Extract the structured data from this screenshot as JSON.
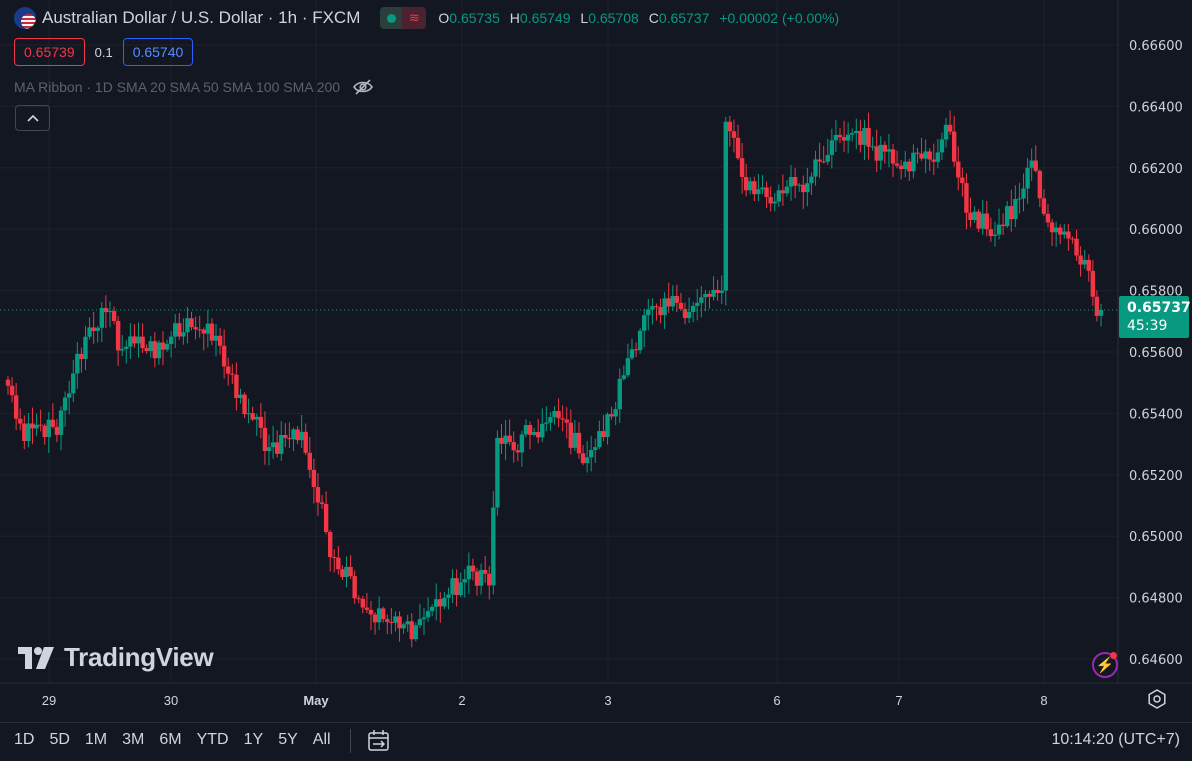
{
  "header": {
    "title": "Australian Dollar / U.S. Dollar · 1h · FXCM",
    "ohlc": {
      "o_label": "O",
      "o": "0.65735",
      "h_label": "H",
      "h": "0.65749",
      "l_label": "L",
      "l": "0.65708",
      "c_label": "C",
      "c": "0.65737",
      "change": "+0.00002 (+0.00%)"
    }
  },
  "trade": {
    "bid": "0.65739",
    "spread": "0.1",
    "ask": "0.65740"
  },
  "indicator": {
    "label": "MA Ribbon · 1D SMA 20 SMA 50 SMA 100 SMA 200"
  },
  "price_tag": {
    "price": "0.65737",
    "countdown": "45:39"
  },
  "logo": {
    "text": "TradingView"
  },
  "bottom_bar": {
    "ranges": [
      "1D",
      "5D",
      "1M",
      "3M",
      "6M",
      "YTD",
      "1Y",
      "5Y",
      "All"
    ],
    "clock": "10:14:20 (UTC+7)"
  },
  "colors": {
    "background": "#131722",
    "up": "#089981",
    "down": "#f23645",
    "grid": "#1e222d",
    "text": "#d1d4dc"
  },
  "icons": [
    "flag-icon",
    "eye-slash-icon",
    "chevron-up-icon",
    "lightning-icon",
    "gear-icon",
    "calendar-range-icon"
  ],
  "chart_data": {
    "type": "candlestick",
    "ylim": [
      0.6455,
      0.6663
    ],
    "y_ticks": [
      "0.66600",
      "0.66400",
      "0.66200",
      "0.66000",
      "0.65800",
      "0.65600",
      "0.65400",
      "0.65200",
      "0.65000",
      "0.64800",
      "0.64600"
    ],
    "x_ticks": [
      "29",
      "30",
      "May",
      "2",
      "3",
      "6",
      "7",
      "8"
    ],
    "last_price": 0.65737,
    "anchors": [
      [
        0,
        0.6549
      ],
      [
        4,
        0.6531
      ],
      [
        8,
        0.6536
      ],
      [
        12,
        0.6533
      ],
      [
        16,
        0.6553
      ],
      [
        20,
        0.6568
      ],
      [
        24,
        0.6573
      ],
      [
        28,
        0.6561
      ],
      [
        32,
        0.6565
      ],
      [
        36,
        0.6558
      ],
      [
        40,
        0.6565
      ],
      [
        44,
        0.6571
      ],
      [
        48,
        0.6566
      ],
      [
        52,
        0.6562
      ],
      [
        56,
        0.6545
      ],
      [
        60,
        0.6538
      ],
      [
        64,
        0.6529
      ],
      [
        68,
        0.6532
      ],
      [
        72,
        0.6534
      ],
      [
        76,
        0.6511
      ],
      [
        80,
        0.6493
      ],
      [
        84,
        0.6487
      ],
      [
        88,
        0.6476
      ],
      [
        92,
        0.6473
      ],
      [
        96,
        0.647
      ],
      [
        100,
        0.6471
      ],
      [
        104,
        0.6477
      ],
      [
        108,
        0.6481
      ],
      [
        112,
        0.6486
      ],
      [
        116,
        0.6489
      ],
      [
        118,
        0.6484
      ],
      [
        120,
        0.6532
      ],
      [
        124,
        0.6528
      ],
      [
        128,
        0.6533
      ],
      [
        132,
        0.6537
      ],
      [
        136,
        0.6538
      ],
      [
        140,
        0.6527
      ],
      [
        144,
        0.6529
      ],
      [
        148,
        0.6539
      ],
      [
        152,
        0.6558
      ],
      [
        156,
        0.6572
      ],
      [
        160,
        0.6572
      ],
      [
        164,
        0.6576
      ],
      [
        168,
        0.6575
      ],
      [
        172,
        0.6578
      ],
      [
        175,
        0.658
      ],
      [
        176,
        0.6635
      ],
      [
        180,
        0.6617
      ],
      [
        184,
        0.6613
      ],
      [
        188,
        0.6609
      ],
      [
        192,
        0.6617
      ],
      [
        196,
        0.6615
      ],
      [
        200,
        0.6622
      ],
      [
        204,
        0.663
      ],
      [
        208,
        0.6632
      ],
      [
        212,
        0.6627
      ],
      [
        216,
        0.6626
      ],
      [
        220,
        0.6622
      ],
      [
        224,
        0.6623
      ],
      [
        228,
        0.6625
      ],
      [
        230,
        0.6634
      ],
      [
        232,
        0.6622
      ],
      [
        234,
        0.6615
      ],
      [
        236,
        0.6603
      ],
      [
        240,
        0.66
      ],
      [
        244,
        0.6601
      ],
      [
        248,
        0.661
      ],
      [
        250,
        0.662
      ],
      [
        252,
        0.6619
      ],
      [
        254,
        0.6605
      ],
      [
        256,
        0.6599
      ],
      [
        260,
        0.6597
      ],
      [
        264,
        0.659
      ],
      [
        266,
        0.6578
      ],
      [
        268,
        0.6574
      ]
    ]
  }
}
